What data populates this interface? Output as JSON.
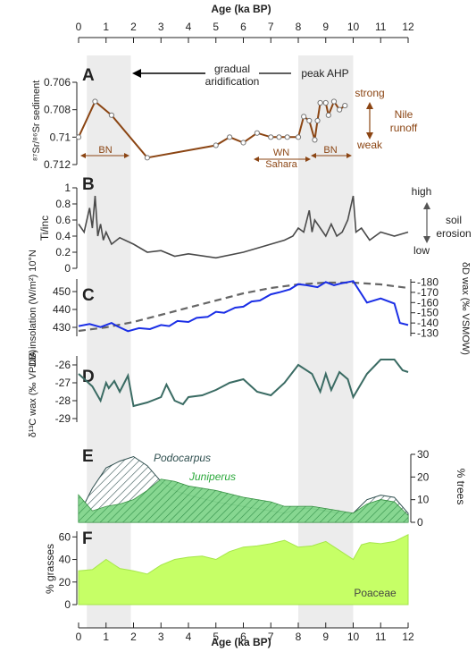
{
  "figure": {
    "top_axis_label": "Age (ka BP)",
    "bottom_axis_label": "Age (ka BP)",
    "age_ticks": [
      0,
      1,
      2,
      3,
      4,
      5,
      6,
      7,
      8,
      9,
      10,
      11,
      12
    ],
    "shaded_bands": [
      [
        0.3,
        1.9
      ],
      [
        8.0,
        10.0
      ]
    ]
  },
  "chart_data": [
    {
      "panel": "A",
      "type": "line",
      "ylabel": "⁸⁷Sr/⁸⁶Sr sediment",
      "ylim": [
        0.712,
        0.706
      ],
      "yticks": [
        "0.706",
        "0.708",
        "0.71",
        "0.712"
      ],
      "color": "#8B4513",
      "x": [
        0,
        0.6,
        1.2,
        2.5,
        5.0,
        5.5,
        6.0,
        6.5,
        7.0,
        7.3,
        7.6,
        8.0,
        8.2,
        8.4,
        8.6,
        8.7,
        8.8,
        9.0,
        9.1,
        9.3,
        9.5,
        9.7
      ],
      "y": [
        0.71,
        0.7074,
        0.7084,
        0.7115,
        0.7106,
        0.71,
        0.7104,
        0.7097,
        0.71,
        0.71,
        0.71,
        0.71,
        0.7085,
        0.7088,
        0.7102,
        0.7088,
        0.7075,
        0.7075,
        0.7084,
        0.7074,
        0.708,
        0.7077
      ],
      "annotations": {
        "gradual": "gradual",
        "aridification": "aridification",
        "peak_ahp": "peak AHP",
        "strong": "strong",
        "nile": "Nile",
        "runoff": "runoff",
        "weak": "weak",
        "bn_left": "BN",
        "wn": "WN",
        "sahara": "Sahara",
        "bn_right": "BN"
      }
    },
    {
      "panel": "B",
      "type": "line",
      "ylabel": "Ti/inc",
      "ylim": [
        0,
        1
      ],
      "yticks": [
        "0",
        "0.2",
        "0.4",
        "0.6",
        "0.8",
        "1"
      ],
      "color": "#4a4a4a",
      "x": [
        0,
        0.2,
        0.4,
        0.5,
        0.6,
        0.7,
        0.8,
        0.9,
        1.0,
        1.2,
        1.5,
        2.0,
        2.5,
        3.0,
        3.5,
        4.0,
        5.0,
        6.0,
        6.5,
        7.0,
        7.5,
        7.8,
        8.0,
        8.2,
        8.4,
        8.5,
        8.6,
        8.8,
        9.0,
        9.2,
        9.4,
        9.6,
        9.8,
        10.0,
        10.1,
        10.3,
        10.6,
        11.0,
        11.5,
        12.0
      ],
      "y": [
        0.55,
        0.45,
        0.75,
        0.5,
        0.9,
        0.4,
        0.55,
        0.35,
        0.45,
        0.3,
        0.38,
        0.3,
        0.2,
        0.22,
        0.15,
        0.18,
        0.13,
        0.2,
        0.25,
        0.3,
        0.35,
        0.4,
        0.5,
        0.45,
        0.72,
        0.45,
        0.6,
        0.5,
        0.4,
        0.55,
        0.4,
        0.45,
        0.6,
        0.9,
        0.45,
        0.5,
        0.35,
        0.45,
        0.4,
        0.45
      ],
      "annotations": {
        "high": "high",
        "soil": "soil",
        "erosion": "erosion",
        "low": "low"
      }
    },
    {
      "panel": "C",
      "type": "line",
      "ylabel": "JJA insolation (W/m²) 10°N",
      "ylim": [
        425,
        457
      ],
      "yticks": [
        "430",
        "440",
        "450"
      ],
      "y2label": "δD wax (‰ VSMOW)",
      "y2lim": [
        -127,
        -183
      ],
      "y2ticks": [
        "-180",
        "-170",
        "-160",
        "-150",
        "-140",
        "-130"
      ],
      "series": [
        {
          "axis": "left",
          "style": "dashed",
          "color": "#666666",
          "x": [
            0,
            1,
            2,
            3,
            4,
            5,
            6,
            7,
            8,
            9,
            10,
            11,
            12
          ],
          "y": [
            428,
            430,
            433,
            437,
            441,
            445,
            449,
            452,
            454,
            455,
            455,
            454,
            452
          ]
        },
        {
          "axis": "right",
          "style": "solid",
          "color": "#1a2ee6",
          "x": [
            0,
            0.4,
            0.8,
            1.2,
            1.4,
            1.8,
            2.2,
            2.6,
            3.0,
            3.3,
            3.6,
            4.0,
            4.3,
            4.7,
            5.0,
            5.3,
            5.7,
            6.0,
            6.3,
            6.6,
            7.0,
            7.3,
            7.7,
            8.0,
            8.3,
            8.7,
            9.0,
            9.3,
            9.6,
            10.0,
            10.5,
            11.0,
            11.5,
            11.7,
            12.0
          ],
          "y": [
            -137,
            -139,
            -136,
            -140,
            -137,
            -132,
            -135,
            -134,
            -138,
            -137,
            -142,
            -141,
            -145,
            -146,
            -151,
            -150,
            -155,
            -156,
            -161,
            -162,
            -168,
            -170,
            -173,
            -178,
            -177,
            -175,
            -180,
            -177,
            -179,
            -181,
            -160,
            -164,
            -159,
            -140,
            -138
          ]
        }
      ]
    },
    {
      "panel": "D",
      "type": "line",
      "ylabel": "δ¹³C wax (‰ VPDB)",
      "ylim": [
        -29.2,
        -25.5
      ],
      "yticks": [
        "-26",
        "-27",
        "-28",
        "-29"
      ],
      "color": "#3a6b63",
      "x": [
        0,
        0.5,
        0.8,
        1.0,
        1.1,
        1.3,
        1.5,
        1.8,
        2.0,
        2.5,
        3.0,
        3.2,
        3.5,
        3.8,
        4.0,
        4.5,
        5.0,
        5.5,
        6.0,
        6.5,
        7.0,
        7.5,
        8.0,
        8.5,
        8.8,
        9.0,
        9.2,
        9.5,
        9.8,
        10.0,
        10.5,
        11.0,
        11.5,
        11.8,
        12.0
      ],
      "y": [
        -26.5,
        -27.2,
        -28.0,
        -27.0,
        -27.3,
        -26.9,
        -27.5,
        -26.6,
        -28.3,
        -28.1,
        -27.8,
        -27.1,
        -28.0,
        -28.2,
        -27.8,
        -27.7,
        -27.4,
        -27.0,
        -26.8,
        -27.5,
        -27.7,
        -27.0,
        -26.0,
        -26.5,
        -27.5,
        -26.5,
        -27.4,
        -26.4,
        -26.8,
        -27.8,
        -26.5,
        -25.7,
        -25.7,
        -26.3,
        -26.4
      ]
    },
    {
      "panel": "E",
      "type": "area",
      "ylabel": "% trees",
      "ylim": [
        0,
        30
      ],
      "yticks": [
        "0",
        "10",
        "20",
        "30"
      ],
      "series": [
        {
          "name": "Podocarpus",
          "style": "hatched",
          "color": "#2f4f4f",
          "x": [
            0,
            0.5,
            1.0,
            1.5,
            2.0,
            2.5,
            3.0,
            3.5,
            4.0,
            5.0,
            6.0,
            7.0,
            7.5,
            8.0,
            8.5,
            9.0,
            9.5,
            10.0,
            10.5,
            11.0,
            11.5,
            12.0
          ],
          "y": [
            3,
            15,
            24,
            27,
            29,
            25,
            18,
            14,
            12,
            9,
            7,
            5,
            4,
            6,
            6,
            5,
            4,
            4,
            10,
            12,
            11,
            4
          ]
        },
        {
          "name": "Juniperus",
          "style": "solid",
          "color": "#33bb44",
          "x": [
            0,
            0.5,
            1.0,
            1.5,
            2.0,
            2.5,
            3.0,
            3.5,
            4.0,
            5.0,
            6.0,
            7.0,
            7.5,
            8.0,
            8.5,
            9.0,
            9.5,
            10.0,
            10.5,
            11.0,
            11.5,
            12.0
          ],
          "y": [
            12,
            5,
            7,
            8,
            10,
            14,
            19,
            18,
            16,
            14,
            11,
            9,
            7,
            7,
            7,
            6,
            5,
            4,
            8,
            10,
            9,
            3
          ]
        }
      ]
    },
    {
      "panel": "F",
      "type": "area",
      "ylabel": "% grasses",
      "ylim": [
        0,
        65
      ],
      "yticks": [
        "0",
        "20",
        "40",
        "60"
      ],
      "series": [
        {
          "name": "Poaceae",
          "color": "#c6ff66",
          "x": [
            0,
            0.5,
            1.0,
            1.5,
            2.0,
            2.5,
            3.0,
            3.5,
            4.0,
            4.5,
            5.0,
            5.5,
            6.0,
            6.5,
            7.0,
            7.5,
            8.0,
            8.5,
            9.0,
            9.5,
            10.0,
            10.3,
            10.6,
            11.0,
            11.5,
            12.0
          ],
          "y": [
            30,
            31,
            40,
            32,
            30,
            27,
            35,
            40,
            42,
            43,
            40,
            47,
            51,
            52,
            54,
            57,
            51,
            52,
            56,
            48,
            40,
            53,
            55,
            54,
            56,
            62
          ]
        }
      ]
    }
  ]
}
